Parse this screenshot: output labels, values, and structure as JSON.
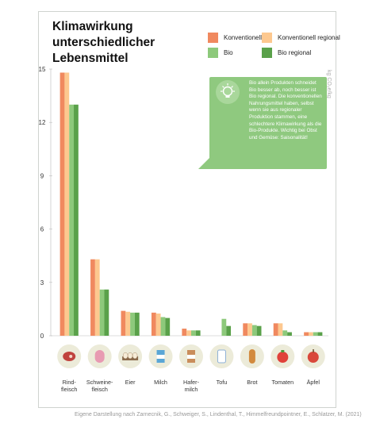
{
  "chart_data": {
    "type": "bar",
    "title": "Klimawirkung\nunterschiedlicher\nLebensmittel",
    "unit_label": "kg CO₂e/kg",
    "ylim": [
      0,
      15
    ],
    "yticks": [
      "0",
      "3",
      "6",
      "9",
      "12",
      "15"
    ],
    "categories": [
      "Rind-\nfleisch",
      "Schweine-\nfleisch",
      "Eier",
      "Milch",
      "Hafer-\nmilch",
      "Tofu",
      "Brot",
      "Tomaten",
      "Äpfel"
    ],
    "category_icons": [
      "steak-icon",
      "sausage-icon",
      "eggs-icon",
      "milk-carton-icon",
      "oat-milk-icon",
      "tofu-icon",
      "bread-icon",
      "tomato-icon",
      "apple-icon"
    ],
    "series": [
      {
        "name": "Konventionell",
        "color": "#f0895f",
        "values": [
          14.8,
          4.3,
          1.4,
          1.3,
          0.4,
          null,
          0.7,
          0.7,
          0.2
        ]
      },
      {
        "name": "Konventionell regional",
        "color": "#fdc88f",
        "values": [
          14.8,
          4.3,
          1.35,
          1.25,
          0.3,
          null,
          0.7,
          0.7,
          0.2
        ]
      },
      {
        "name": "Bio",
        "color": "#8dc97b",
        "values": [
          13.0,
          2.6,
          1.3,
          1.05,
          0.3,
          0.95,
          0.6,
          0.3,
          0.2
        ]
      },
      {
        "name": "Bio regional",
        "color": "#5aa14a",
        "values": [
          13.0,
          2.6,
          1.3,
          1.0,
          0.3,
          0.55,
          0.55,
          0.2,
          0.2
        ]
      }
    ],
    "grid": false,
    "legend_position": "top-right"
  },
  "callout_text": "Bio allein Produkten schneidet Bio besser ab, noch besser ist Bio regional. Die konventionellen Nahrungsmittel haben, selbst wenn sie aus regionaler Produktion stammen, eine schlechtere Klimawirkung als die Bio-Produkte. Wichtig bei Obst und Gemüse: Saisonalität!",
  "source": "Eigene Darstellung nach Zarnecnik, G., Schweiger, S., Lindenthal, T., Himmelfreundpointner, E., Schlatzer, M. (2021)"
}
